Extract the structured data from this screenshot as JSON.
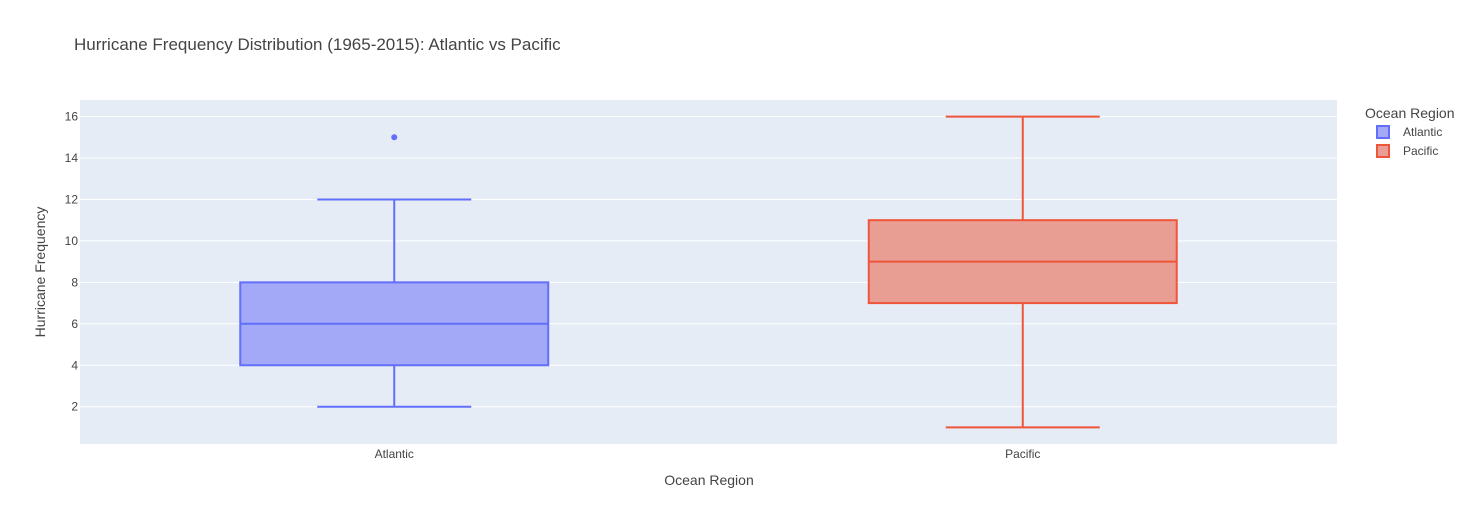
{
  "chart_data": {
    "type": "box",
    "title": "Hurricane Frequency Distribution (1965-2015): Atlantic vs Pacific",
    "xlabel": "Ocean Region",
    "ylabel": "Hurricane Frequency",
    "categories": [
      "Atlantic",
      "Pacific"
    ],
    "y_ticks": [
      2,
      4,
      6,
      8,
      10,
      12,
      14,
      16
    ],
    "ylim": [
      0.2,
      16.8
    ],
    "grid": true,
    "legend": {
      "title": "Ocean Region",
      "position": "top-right"
    },
    "series": [
      {
        "name": "Atlantic",
        "category": "Atlantic",
        "min": 2,
        "q1": 4,
        "median": 6,
        "q3": 8,
        "max": 12,
        "outliers": [
          15
        ],
        "line_color": "#636efa",
        "fill_color": "#a3a9f6"
      },
      {
        "name": "Pacific",
        "category": "Pacific",
        "min": 1,
        "q1": 7,
        "median": 9,
        "q3": 11,
        "max": 16,
        "outliers": [],
        "line_color": "#ef553b",
        "fill_color": "#e99e93"
      }
    ]
  }
}
